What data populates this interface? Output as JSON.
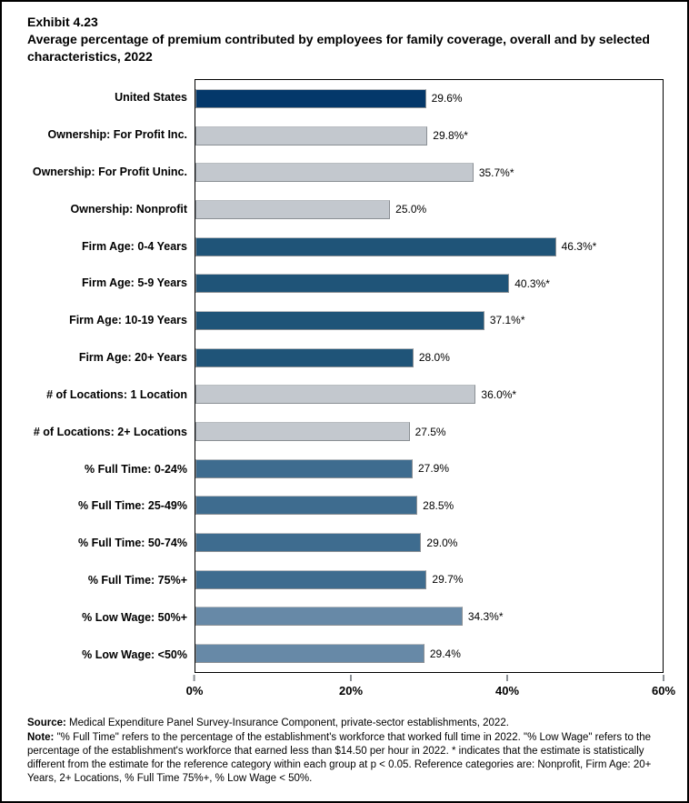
{
  "page": {
    "exhibit_label": "Exhibit 4.23",
    "title": "Average percentage of premium contributed by employees for family coverage, overall and by selected characteristics, 2022"
  },
  "footer": {
    "source_label": "Source:",
    "source_text": " Medical Expenditure Panel Survey-Insurance Component, private-sector establishments, 2022.",
    "note_label": "Note:",
    "note_text": " \"% Full Time\" refers to the percentage of the establishment's workforce that worked full time in 2022. \"% Low Wage\" refers to the percentage of the establishment's workforce that earned less than $14.50 per hour in 2022. * indicates that the estimate is statistically different from the estimate for the reference category within each group at p < 0.05.  Reference categories are: Nonprofit, Firm Age: 20+ Years, 2+ Locations, % Full Time 75%+, % Low Wage < 50%."
  },
  "chart_data": {
    "type": "bar",
    "orientation": "horizontal",
    "title": "Average percentage of premium contributed by employees for family coverage, overall and by selected characteristics, 2022",
    "xlabel": "",
    "ylabel": "",
    "xlim": [
      0,
      60
    ],
    "grid": false,
    "legend": false,
    "x_ticks": [
      {
        "value": 0,
        "label": "0%"
      },
      {
        "value": 20,
        "label": "20%"
      },
      {
        "value": 40,
        "label": "40%"
      },
      {
        "value": 60,
        "label": "60%"
      }
    ],
    "group_colors": {
      "overall": "#04386A",
      "ownership": "#C3C8CE",
      "firm_age": "#1F5478",
      "locations": "#C3C8CE",
      "full_time": "#3E6C8F",
      "low_wage": "#6789A7"
    },
    "bars": [
      {
        "label": "United States",
        "value": 29.6,
        "display": "29.6%",
        "group": "overall"
      },
      {
        "label": "Ownership: For Profit Inc.",
        "value": 29.8,
        "display": "29.8%*",
        "group": "ownership"
      },
      {
        "label": "Ownership: For Profit Uninc.",
        "value": 35.7,
        "display": "35.7%*",
        "group": "ownership"
      },
      {
        "label": "Ownership: Nonprofit",
        "value": 25.0,
        "display": "25.0%",
        "group": "ownership"
      },
      {
        "label": "Firm Age: 0-4 Years",
        "value": 46.3,
        "display": "46.3%*",
        "group": "firm_age"
      },
      {
        "label": "Firm Age: 5-9 Years",
        "value": 40.3,
        "display": "40.3%*",
        "group": "firm_age"
      },
      {
        "label": "Firm Age: 10-19 Years",
        "value": 37.1,
        "display": "37.1%*",
        "group": "firm_age"
      },
      {
        "label": "Firm Age: 20+ Years",
        "value": 28.0,
        "display": "28.0%",
        "group": "firm_age"
      },
      {
        "label": "# of Locations: 1 Location",
        "value": 36.0,
        "display": "36.0%*",
        "group": "locations"
      },
      {
        "label": "# of Locations: 2+ Locations",
        "value": 27.5,
        "display": "27.5%",
        "group": "locations"
      },
      {
        "label": "% Full Time: 0-24%",
        "value": 27.9,
        "display": "27.9%",
        "group": "full_time"
      },
      {
        "label": "% Full Time: 25-49%",
        "value": 28.5,
        "display": "28.5%",
        "group": "full_time"
      },
      {
        "label": "% Full Time: 50-74%",
        "value": 29.0,
        "display": "29.0%",
        "group": "full_time"
      },
      {
        "label": "% Full Time: 75%+",
        "value": 29.7,
        "display": "29.7%",
        "group": "full_time"
      },
      {
        "label": "% Low Wage: 50%+",
        "value": 34.3,
        "display": "34.3%*",
        "group": "low_wage"
      },
      {
        "label": "% Low Wage: <50%",
        "value": 29.4,
        "display": "29.4%",
        "group": "low_wage"
      }
    ]
  }
}
